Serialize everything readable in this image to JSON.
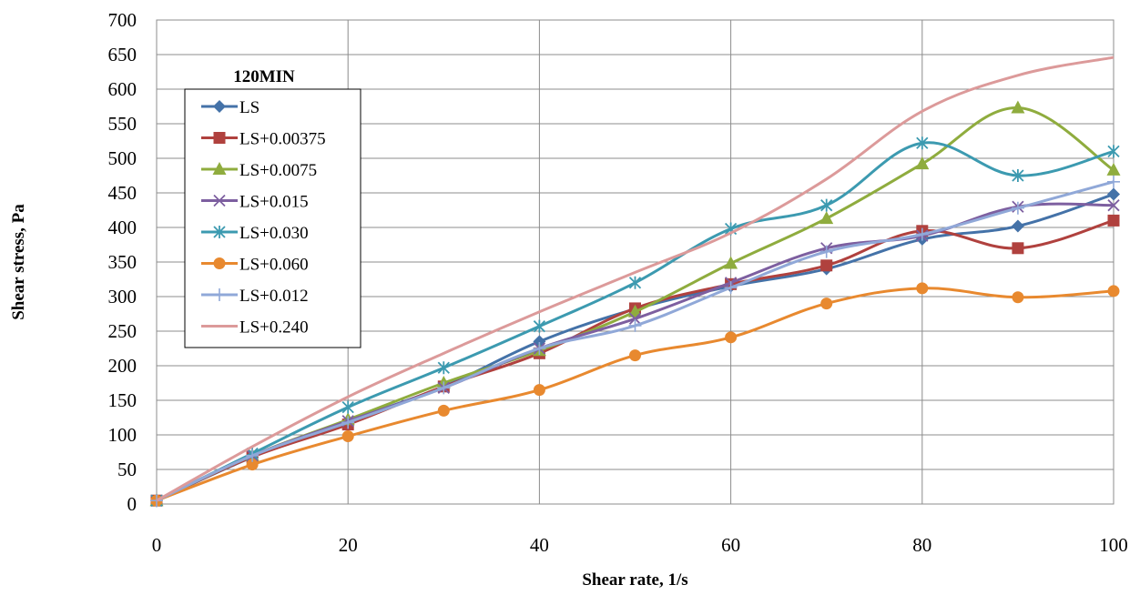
{
  "chart_data": {
    "type": "line",
    "title": "",
    "xlabel": "Shear rate, 1/s",
    "ylabel": "Shear stress, Pa",
    "xlim": [
      0,
      100
    ],
    "ylim": [
      0,
      700
    ],
    "xticks": [
      0,
      20,
      40,
      60,
      80,
      100
    ],
    "yticks": [
      0,
      50,
      100,
      150,
      200,
      250,
      300,
      350,
      400,
      450,
      500,
      550,
      600,
      650,
      700
    ],
    "grid": true,
    "legend": {
      "title": "120MIN",
      "placement": "top-left"
    },
    "x": [
      0,
      10,
      20,
      30,
      40,
      50,
      60,
      70,
      80,
      90,
      100
    ],
    "series": [
      {
        "name": "LS",
        "marker": "diamond",
        "color": "#4472a8",
        "values": [
          5,
          68,
          120,
          170,
          235,
          282,
          315,
          340,
          383,
          402,
          448
        ]
      },
      {
        "name": "LS+0.00375",
        "marker": "square",
        "color": "#b0413e",
        "values": [
          5,
          68,
          115,
          170,
          218,
          283,
          318,
          345,
          395,
          370,
          410
        ]
      },
      {
        "name": "LS+0.0075",
        "marker": "triangle",
        "color": "#8fac3e",
        "values": [
          5,
          70,
          122,
          175,
          222,
          278,
          348,
          413,
          492,
          573,
          483
        ]
      },
      {
        "name": "LS+0.015",
        "marker": "x",
        "color": "#7d5fa0",
        "values": [
          5,
          70,
          120,
          168,
          225,
          268,
          320,
          370,
          388,
          430,
          432
        ]
      },
      {
        "name": "LS+0.030",
        "marker": "star",
        "color": "#3c9ab0",
        "values": [
          5,
          73,
          140,
          197,
          257,
          320,
          398,
          432,
          522,
          475,
          510
        ]
      },
      {
        "name": "LS+0.060",
        "marker": "circle",
        "color": "#e8892f",
        "values": [
          5,
          57,
          98,
          135,
          165,
          215,
          241,
          290,
          312,
          299,
          308
        ]
      },
      {
        "name": "LS+0.012",
        "marker": "plus",
        "color": "#90a8d8",
        "values": [
          5,
          70,
          118,
          168,
          225,
          258,
          313,
          365,
          390,
          428,
          466
        ]
      },
      {
        "name": "LS+0.240",
        "marker": "none",
        "color": "#dc9a9a",
        "values": [
          5,
          83,
          155,
          218,
          278,
          335,
          392,
          470,
          568,
          620,
          646
        ]
      }
    ]
  }
}
